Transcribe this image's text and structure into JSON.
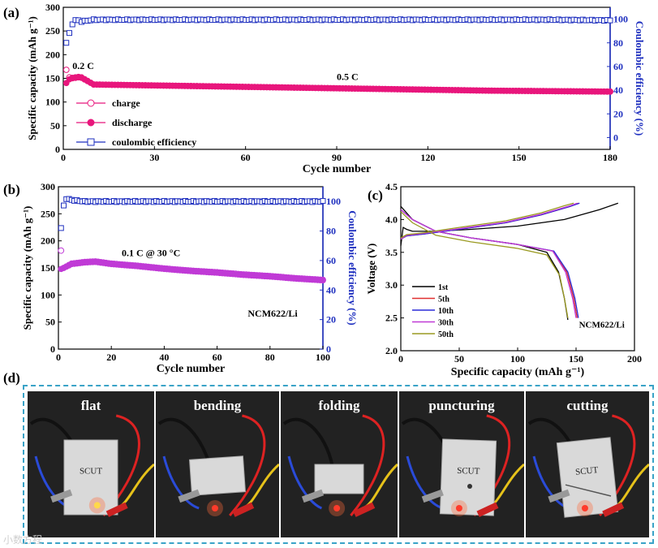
{
  "panel_labels": {
    "a": "(a)",
    "b": "(b)",
    "c": "(c)",
    "d": "(d)"
  },
  "chart_data": [
    {
      "id": "a",
      "type": "scatter",
      "xlabel": "Cycle number",
      "ylabel": "Specific capacity (mAh g⁻¹)",
      "y2label": "Coulombic efficiency (%)",
      "xlim": [
        0,
        180
      ],
      "ylim": [
        0,
        300
      ],
      "y2lim": [
        -10,
        110
      ],
      "xticks": [
        "0",
        "30",
        "60",
        "90",
        "120",
        "150",
        "180"
      ],
      "yticks": [
        "0",
        "50",
        "100",
        "150",
        "200",
        "250",
        "300"
      ],
      "y2ticks": [
        "0",
        "20",
        "40",
        "60",
        "80",
        "100"
      ],
      "annotations": [
        {
          "text": "0.2 C",
          "x": 3,
          "y": 170
        },
        {
          "text": "0.5 C",
          "x": 90,
          "y": 147
        }
      ],
      "legend": [
        "charge",
        "discharge",
        "coulombic efficiency"
      ],
      "series": [
        {
          "name": "charge",
          "color": "#e8167c",
          "x": [
            1,
            2,
            3,
            4,
            5,
            6,
            10,
            20,
            40,
            60,
            80,
            100,
            120,
            140,
            160,
            180
          ],
          "values": [
            168,
            152,
            151,
            152,
            153,
            152,
            137,
            136,
            134,
            132,
            130,
            128,
            126,
            124,
            123,
            122
          ]
        },
        {
          "name": "discharge",
          "color": "#e8167c",
          "x": [
            1,
            2,
            3,
            4,
            5,
            6,
            10,
            20,
            40,
            60,
            80,
            100,
            120,
            140,
            160,
            180
          ],
          "values": [
            140,
            148,
            150,
            151,
            152,
            151,
            137,
            136,
            134,
            132,
            130,
            128,
            126,
            124,
            123,
            122
          ]
        },
        {
          "name": "coulombic efficiency",
          "color": "#1e2fbf",
          "axis": "right",
          "x": [
            1,
            2,
            3,
            4,
            5,
            6,
            10,
            40,
            80,
            120,
            160,
            180
          ],
          "values": [
            80,
            88,
            96,
            99,
            99,
            98,
            99.5,
            99.5,
            99.5,
            99.5,
            99.5,
            99
          ]
        }
      ]
    },
    {
      "id": "b",
      "type": "scatter",
      "xlabel": "Cycle number",
      "ylabel": "Specific capacity (mAh g⁻¹)",
      "y2label": "Coulombic efficiency (%)",
      "xlim": [
        0,
        100
      ],
      "ylim": [
        0,
        300
      ],
      "y2lim": [
        0,
        110
      ],
      "xticks": [
        "0",
        "20",
        "40",
        "60",
        "80",
        "100"
      ],
      "yticks": [
        "0",
        "50",
        "100",
        "150",
        "200",
        "250",
        "300"
      ],
      "y2ticks": [
        "0",
        "20",
        "40",
        "60",
        "80",
        "100"
      ],
      "annotations": [
        {
          "text": "0.1 C @ 30 °C",
          "x": 35,
          "y": 172
        },
        {
          "text": "NCM622/Li",
          "x": 81,
          "y": 60
        }
      ],
      "series": [
        {
          "name": "charge",
          "color": "#c03ad6",
          "x": [
            1,
            2,
            5,
            10,
            14,
            20,
            30,
            40,
            50,
            60,
            70,
            80,
            90,
            100
          ],
          "values": [
            182,
            150,
            158,
            161,
            162,
            158,
            154,
            149,
            145,
            142,
            138,
            135,
            131,
            128
          ]
        },
        {
          "name": "discharge",
          "color": "#c03ad6",
          "x": [
            1,
            2,
            5,
            10,
            14,
            20,
            30,
            40,
            50,
            60,
            70,
            80,
            90,
            100
          ],
          "values": [
            148,
            150,
            157,
            160,
            161,
            157,
            153,
            148,
            144,
            141,
            137,
            134,
            130,
            127
          ]
        },
        {
          "name": "coulombic efficiency",
          "color": "#1e2fbf",
          "axis": "right",
          "x": [
            1,
            2,
            3,
            5,
            10,
            20,
            40,
            60,
            80,
            100
          ],
          "values": [
            82,
            97,
            102,
            101,
            100,
            100,
            100,
            100,
            100,
            100
          ]
        }
      ]
    },
    {
      "id": "c",
      "type": "line",
      "xlabel": "Specific capacity (mAh g⁻¹)",
      "ylabel": "Voltage (V)",
      "xlim": [
        0,
        200
      ],
      "ylim": [
        2.0,
        4.5
      ],
      "xticks": [
        "0",
        "50",
        "100",
        "150",
        "200"
      ],
      "yticks": [
        "2.0",
        "2.5",
        "3.0",
        "3.5",
        "4.0",
        "4.5"
      ],
      "annotations": [
        {
          "text": "NCM622/Li",
          "x": 172,
          "y": 2.35
        }
      ],
      "series": [
        {
          "name": "1st",
          "color": "#000000",
          "charge": {
            "x": [
              0,
              2,
              5,
              10,
              30,
              60,
              100,
              140,
              170,
              186
            ],
            "y": [
              3.6,
              3.88,
              3.85,
              3.82,
              3.82,
              3.85,
              3.9,
              4.0,
              4.15,
              4.25
            ]
          },
          "discharge": {
            "x": [
              0,
              10,
              30,
              60,
              100,
              125,
              135,
              140,
              143
            ],
            "y": [
              4.2,
              4.0,
              3.82,
              3.72,
              3.62,
              3.5,
              3.2,
              2.8,
              2.47
            ]
          }
        },
        {
          "name": "5th",
          "color": "#e03030",
          "charge": {
            "x": [
              0,
              5,
              20,
              50,
              90,
              120,
              145,
              152
            ],
            "y": [
              3.7,
              3.75,
              3.78,
              3.85,
              3.95,
              4.07,
              4.2,
              4.25
            ]
          },
          "discharge": {
            "x": [
              0,
              10,
              30,
              60,
              100,
              130,
              142,
              148,
              151
            ],
            "y": [
              4.15,
              4.0,
              3.82,
              3.72,
              3.62,
              3.52,
              3.2,
              2.8,
              2.5
            ]
          }
        },
        {
          "name": "10th",
          "color": "#2b2bd8",
          "charge": {
            "x": [
              0,
              5,
              20,
              50,
              90,
              120,
              145,
              153
            ],
            "y": [
              3.7,
              3.75,
              3.78,
              3.85,
              3.95,
              4.07,
              4.2,
              4.25
            ]
          },
          "discharge": {
            "x": [
              0,
              10,
              30,
              60,
              100,
              131,
              143,
              149,
              152
            ],
            "y": [
              4.15,
              4.0,
              3.82,
              3.72,
              3.62,
              3.52,
              3.2,
              2.8,
              2.5
            ]
          }
        },
        {
          "name": "30th",
          "color": "#c03ad6",
          "charge": {
            "x": [
              0,
              5,
              20,
              50,
              90,
              120,
              145,
              151
            ],
            "y": [
              3.7,
              3.76,
              3.79,
              3.86,
              3.96,
              4.08,
              4.21,
              4.25
            ]
          },
          "discharge": {
            "x": [
              0,
              10,
              30,
              60,
              100,
              130,
              141,
              147,
              150
            ],
            "y": [
              4.15,
              4.0,
              3.82,
              3.72,
              3.62,
              3.52,
              3.2,
              2.8,
              2.5
            ]
          }
        },
        {
          "name": "50th",
          "color": "#9a9a20",
          "charge": {
            "x": [
              0,
              5,
              20,
              50,
              90,
              120,
              140,
              148
            ],
            "y": [
              3.72,
              3.77,
              3.8,
              3.88,
              3.98,
              4.1,
              4.21,
              4.25
            ]
          },
          "discharge": {
            "x": [
              0,
              10,
              30,
              60,
              100,
              125,
              136,
              140,
              143
            ],
            "y": [
              4.12,
              3.95,
              3.76,
              3.66,
              3.56,
              3.46,
              3.15,
              2.8,
              2.5
            ]
          }
        }
      ]
    }
  ],
  "photos": {
    "labels": [
      "flat",
      "bending",
      "folding",
      "puncturing",
      "cutting"
    ],
    "pouch_text": "SCUT"
  },
  "watermark": "小数方程"
}
